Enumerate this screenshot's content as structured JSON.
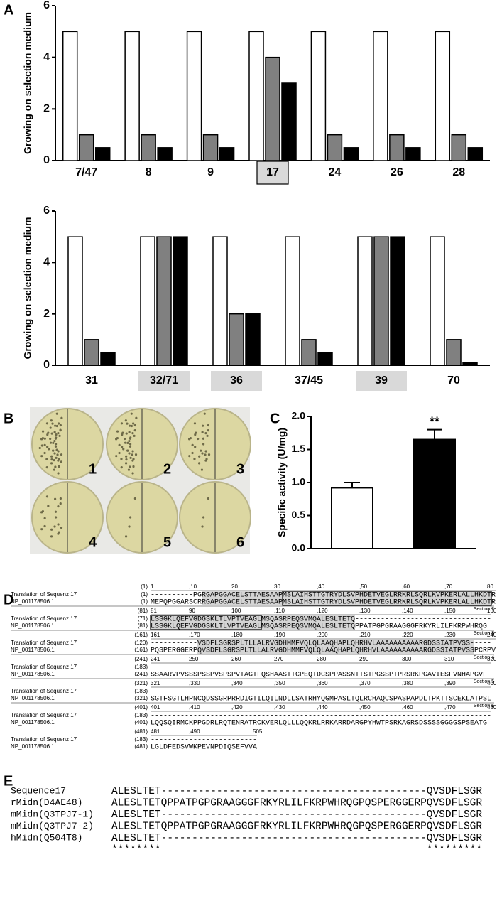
{
  "panel_labels": [
    "A",
    "B",
    "C",
    "D",
    "E"
  ],
  "chart_data": [
    {
      "type": "bar",
      "y_label": "Growing on selection medium",
      "categories": [
        "7/47",
        "8",
        "9",
        "17",
        "24",
        "26",
        "28"
      ],
      "series": [
        {
          "color": "#ffffff",
          "values": [
            5,
            5,
            5,
            5,
            5,
            5,
            5
          ]
        },
        {
          "color": "#808080",
          "values": [
            1,
            1,
            1,
            4,
            1,
            1,
            1
          ]
        },
        {
          "color": "#000000",
          "values": [
            0.5,
            0.5,
            0.5,
            3,
            0.5,
            0.5,
            0.5
          ]
        }
      ],
      "ylim": [
        0,
        6
      ],
      "yticks": [
        0,
        2,
        4,
        6
      ],
      "boxed_categories": [
        3
      ]
    },
    {
      "type": "bar",
      "y_label": "Growing on selection medium",
      "categories": [
        "31",
        "32/71",
        "36",
        "37/45",
        "39",
        "70"
      ],
      "series": [
        {
          "color": "#ffffff",
          "values": [
            5,
            5,
            5,
            5,
            5,
            5
          ]
        },
        {
          "color": "#808080",
          "values": [
            1,
            5,
            2,
            1,
            5,
            1
          ]
        },
        {
          "color": "#000000",
          "values": [
            0.5,
            5,
            2,
            0.5,
            5,
            0.1
          ]
        }
      ],
      "ylim": [
        0,
        6
      ],
      "yticks": [
        0,
        2,
        4,
        6
      ],
      "shaded_categories": [
        1,
        2,
        4
      ]
    },
    {
      "type": "bar",
      "y_label": "Specific activity (U/mg)",
      "categories": [
        null,
        null
      ],
      "values": [
        0.92,
        1.65
      ],
      "errors": [
        0.08,
        0.15
      ],
      "colors": [
        "#ffffff",
        "#000000"
      ],
      "ylim": [
        0,
        2
      ],
      "yticks": [
        {
          "value": 0,
          "label": "0.0"
        },
        {
          "value": 0.5,
          "label": "0.5"
        },
        {
          "value": 1,
          "label": "1.0"
        },
        {
          "value": 1.5,
          "label": "1.5"
        },
        {
          "value": 2,
          "label": "2.0"
        }
      ],
      "annotations": [
        {
          "text": "**",
          "category": 1
        }
      ]
    }
  ],
  "plates": {
    "labels": [
      "1",
      "2",
      "3",
      "4",
      "5",
      "6"
    ]
  },
  "alignment": {
    "blocks": [
      {
        "start": "(1)",
        "ruler": [
          "1",
          ",10",
          "20",
          "30",
          ",40",
          ",50",
          ",60",
          ",70",
          "80"
        ],
        "rows": [
          {
            "name": "Translation of Sequenz 17",
            "pos": "(1)",
            "seq": "----------PGRGAPGGACELSTTAESAAPMSLAIHSTTGTRYDLSVPHDETVEGLRRKRLSQRLKVPKERLALLHKDTR"
          },
          {
            "name": "NP_001178506.1",
            "pos": "(1)",
            "seq": "MEPQPGGARSCRRGAPGGACELSTTAESAAPMSLAIHSTTGTRYDLSVPHDETVEGLRRKRLSQRLKVPKERLALLHKDTR"
          }
        ],
        "section": "Section 2"
      },
      {
        "start": "(81)",
        "ruler": [
          "81",
          "90",
          "100",
          ",110",
          ",120",
          ",130",
          ",140",
          ",150",
          "160"
        ],
        "rows": [
          {
            "name": "Translation of Sequenz 17",
            "pos": "(71)",
            "seq": "LSSGKLQEFVGDGSKLTLVPTVEAGLMSQASRPEQSVMQALESLTETQ--------------------------------"
          },
          {
            "name": "NP_001178506.1",
            "pos": "(81)",
            "seq": "LSSGKLQEFVGDGSKLTLVPTVEAGLMSQASRPEQSVMQALESLTETQPPATPGPGRAAGGGFRKYRLILFKRPWHRQG"
          }
        ],
        "section": "Section 3"
      },
      {
        "start": "(161)",
        "ruler": [
          "161",
          ",170",
          ",180",
          ",190",
          ",200",
          ",210",
          ",220",
          ",230",
          "240"
        ],
        "rows": [
          {
            "name": "Translation of Sequenz 17",
            "pos": "(120)",
            "seq": "-----------VSDFLSGRSPLTLLALRVGDHMMFVQLQLAAQHAPLQHRHVLAAAAAAAAAARGDSSIATPVSS-----"
          },
          {
            "name": "NP_001178506.1",
            "pos": "(161)",
            "seq": "PQSPERGGERPQVSDFLSGRSPLTLLALRVGDHMMFVQLQLAAQHAPLQHRHVLAAAAAAAAAARGDSSIATPVSSPCRPV"
          }
        ],
        "section": "Section 4"
      },
      {
        "start": "(241)",
        "ruler": [
          "241",
          "250",
          "260",
          "270",
          "280",
          "290",
          "300",
          "310",
          "320"
        ],
        "rows": [
          {
            "name": "Translation of Sequenz 17",
            "pos": "(183)",
            "seq": "--------------------------------------------------------------------------------"
          },
          {
            "name": "NP_001178506.1",
            "pos": "(241)",
            "seq": "SSAARVPVSSSPSSPVSPSPVTAGTFQSHAASTTCPEQTDCSPPASSNTTSTPGSSPTPRSRKPGAVIESFVNHAPGVF"
          }
        ],
        "section": "Section 5"
      },
      {
        "start": "(321)",
        "ruler": [
          "321",
          ",330",
          ",340",
          ",350",
          ",360",
          ",370",
          ",380",
          ",390",
          "400"
        ],
        "rows": [
          {
            "name": "Translation of Sequenz 17",
            "pos": "(183)",
            "seq": "--------------------------------------------------------------------------------"
          },
          {
            "name": "NP_001178506.1",
            "pos": "(321)",
            "seq": "SGTFSGTLHPNCQDSSGRPRRDIGTILQILNDLLSATRHYQGMPASLTQLRCHAQCSPASPAPDLTPKTTSCEKLATPSL"
          }
        ],
        "section": "Section 6"
      },
      {
        "start": "(401)",
        "ruler": [
          "401",
          ",410",
          ",420",
          ",430",
          ",440",
          ",450",
          ",460",
          ",470",
          "480"
        ],
        "rows": [
          {
            "name": "Translation of Sequenz 17",
            "pos": "(183)",
            "seq": "--------------------------------------------------------------------------------"
          },
          {
            "name": "NP_001178506.1",
            "pos": "(401)",
            "seq": "LQQSQIRMCKPPGDRLRQTENRATRCKVERLQLLLQQKRLRRKARRDARGPYHWTPSRKAGRSDSSSSGGGGSPSEATG"
          }
        ]
      },
      {
        "start": "(481)",
        "ruler": [
          "481",
          ",490",
          "505"
        ],
        "rows": [
          {
            "name": "Translation of Sequenz 17",
            "pos": "(183)",
            "seq": "-------------------------"
          },
          {
            "name": "NP_001178506.1",
            "pos": "(481)",
            "seq": "LGLDFEDSVWKPEVNPDIQSEFVVA"
          }
        ]
      }
    ]
  },
  "msa": {
    "rows": [
      {
        "name": "Sequence17",
        "seq": "ALESLTET-------------------------------------------QVSDFLSGR"
      },
      {
        "name": "rMidn(D4AE48)",
        "seq": "ALESLTETQPPATPGPGRAAGGGFRKYRLILFKRPWHRQGPQSPERGGERPQVSDFLSGR"
      },
      {
        "name": "mMidn(Q3TPJ7-1)",
        "seq": "ALESLTET-------------------------------------------QVSDFLSGR"
      },
      {
        "name": "mMidn(Q3TPJ7-2)",
        "seq": "ALESLTETQPPATPGPGRAAGGGFRKYRLILFKRPWHRQGPQSPERGGERPQVSDFLSGR"
      },
      {
        "name": "hMidn(Q504T8)",
        "seq": "ALESLTET-------------------------------------------QVSDFLSGR"
      }
    ],
    "consensus": "********                                           *********"
  }
}
